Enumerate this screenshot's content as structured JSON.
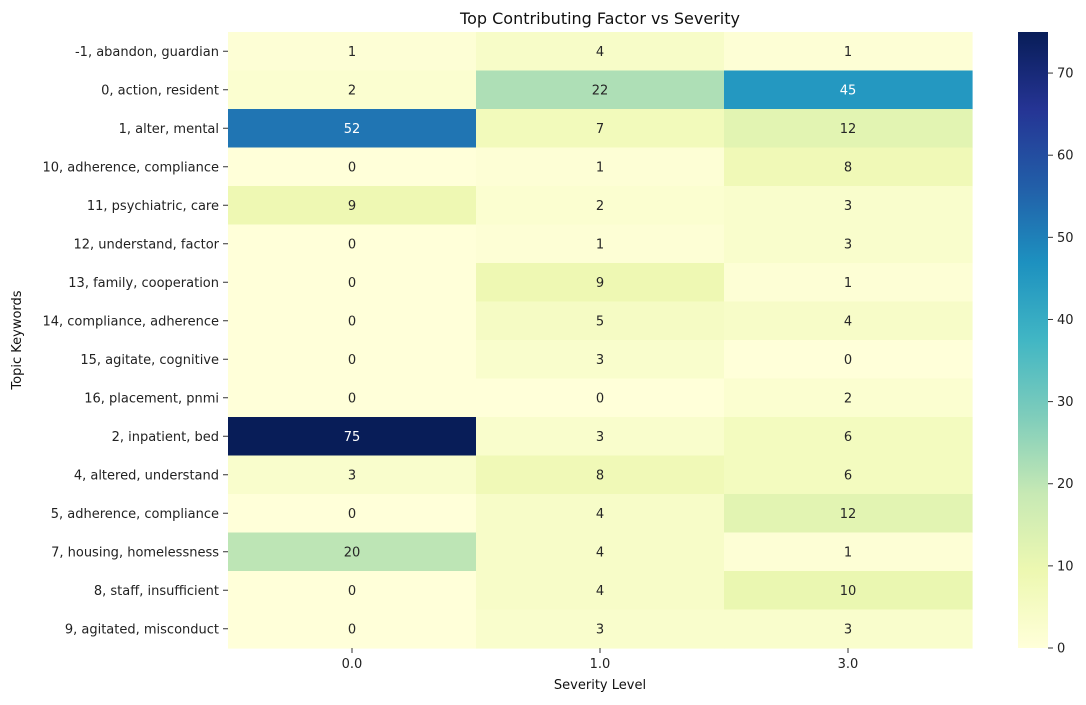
{
  "chart_data": {
    "type": "heatmap",
    "title": "Top Contributing Factor vs Severity",
    "xlabel": "Severity Level",
    "ylabel": "Topic Keywords",
    "x_categories": [
      "0.0",
      "1.0",
      "3.0"
    ],
    "y_categories": [
      "-1, abandon, guardian",
      "0, action, resident",
      "1, alter, mental",
      "10, adherence, compliance",
      "11, psychiatric, care",
      "12, understand, factor",
      "13, family, cooperation",
      "14, compliance, adherence",
      "15, agitate, cognitive",
      "16, placement, pnmi",
      "2, inpatient, bed",
      "4, altered, understand",
      "5, adherence, compliance",
      "7, housing, homelessness",
      "8, staff, insufficient",
      "9, agitated, misconduct"
    ],
    "values": [
      [
        1,
        4,
        1
      ],
      [
        2,
        22,
        45
      ],
      [
        52,
        7,
        12
      ],
      [
        0,
        1,
        8
      ],
      [
        9,
        2,
        3
      ],
      [
        0,
        1,
        3
      ],
      [
        0,
        9,
        1
      ],
      [
        0,
        5,
        4
      ],
      [
        0,
        3,
        0
      ],
      [
        0,
        0,
        2
      ],
      [
        75,
        3,
        6
      ],
      [
        3,
        8,
        6
      ],
      [
        0,
        4,
        12
      ],
      [
        20,
        4,
        1
      ],
      [
        0,
        4,
        10
      ],
      [
        0,
        3,
        3
      ]
    ],
    "colorbar": {
      "colormap": "YlGnBu",
      "min": 0,
      "max": 75,
      "ticks": [
        0,
        10,
        20,
        30,
        40,
        50,
        60,
        70
      ]
    },
    "annotations": true,
    "grid": false
  }
}
